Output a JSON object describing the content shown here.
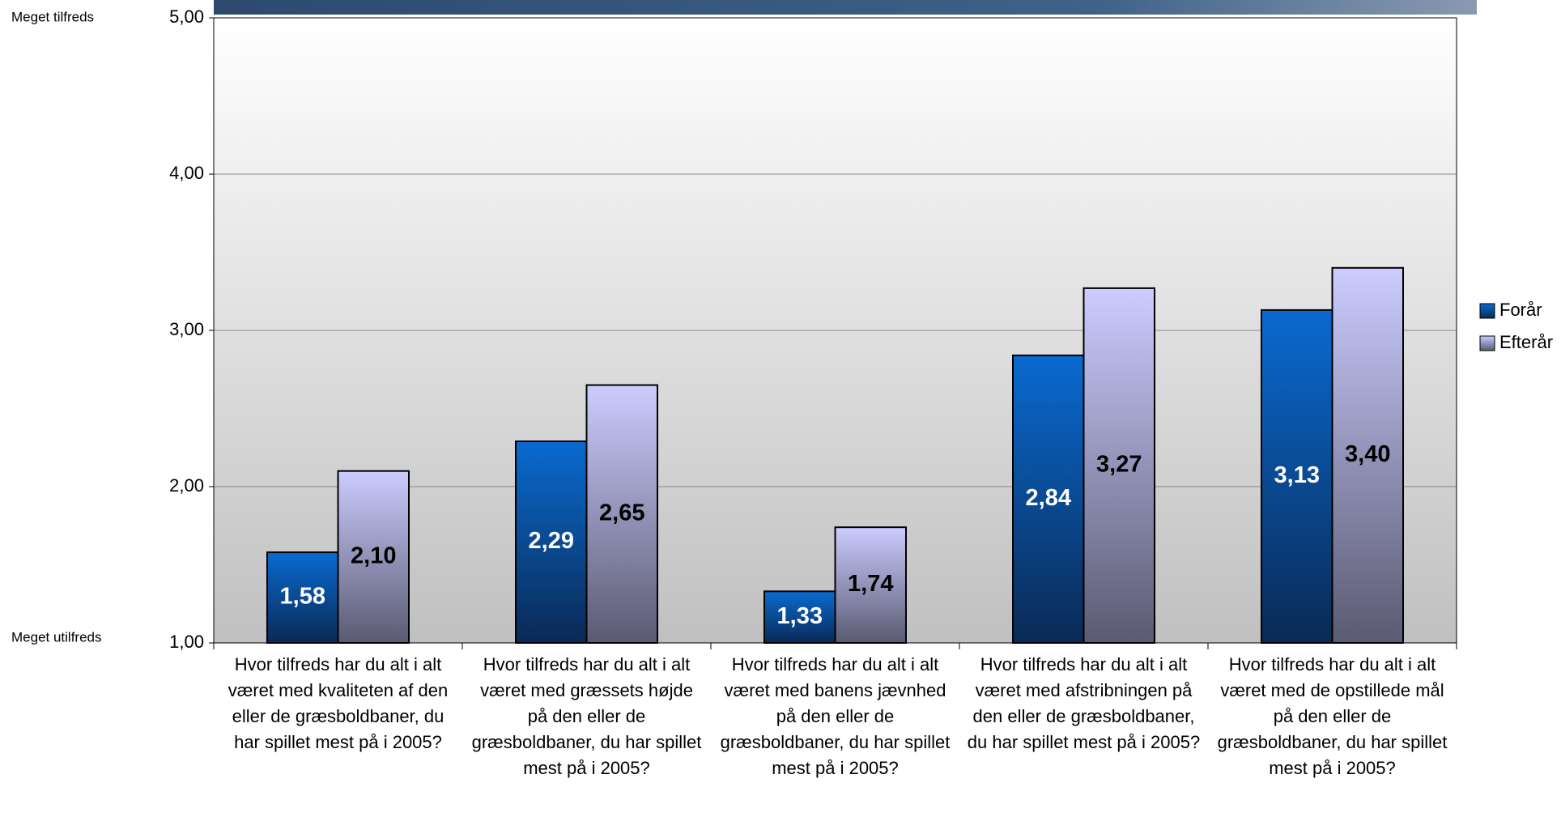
{
  "chart_data": {
    "type": "bar",
    "annotations": [
      "Meget tilfreds",
      "Meget utilfreds"
    ],
    "categories": [
      "Hvor tilfreds har du alt i alt været med kvaliteten af den eller de græsboldbaner, du har spillet mest på i 2005?",
      "Hvor tilfreds har du alt i alt været med græssets højde på den eller de græsboldbaner, du har spillet mest på i 2005?",
      "Hvor tilfreds har du alt i alt været med banens jævnhed på den eller de græsboldbaner, du har spillet mest på i 2005?",
      "Hvor tilfreds har du alt i alt været med afstribningen på den eller de græsboldbaner, du har spillet mest på i 2005?",
      "Hvor tilfreds har du alt i alt været med de opstillede mål på den eller de græsboldbaner, du har spillet mest på i 2005?"
    ],
    "series": [
      {
        "name": "Forår",
        "color": "#0a6ad0",
        "values": [
          1.58,
          2.29,
          1.33,
          2.84,
          3.13
        ],
        "value_labels": [
          "1,58",
          "2,29",
          "1,33",
          "2,84",
          "3,13"
        ]
      },
      {
        "name": "Efterår",
        "color": "#ccccff",
        "values": [
          2.1,
          2.65,
          1.74,
          3.27,
          3.4
        ],
        "value_labels": [
          "2,10",
          "2,65",
          "1,74",
          "3,27",
          "3,40"
        ]
      }
    ],
    "ylim": [
      1,
      5
    ],
    "yticks": [
      {
        "value": 1,
        "label": "1,00"
      },
      {
        "value": 2,
        "label": "2,00"
      },
      {
        "value": 3,
        "label": "3,00"
      },
      {
        "value": 4,
        "label": "4,00"
      },
      {
        "value": 5,
        "label": "5,00"
      }
    ],
    "grid": true,
    "legend": "right"
  }
}
